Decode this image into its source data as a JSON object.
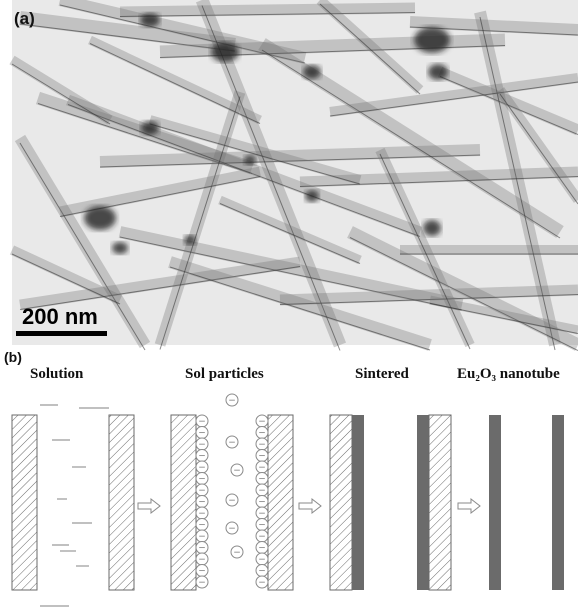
{
  "panel_a": {
    "label": "(a)",
    "scale_bar": "200 nm",
    "colors": {
      "background": "#e9e9e9",
      "ribbon": "#6f6f6f",
      "ribbon_dark": "#2e2e2e",
      "particle": "#1f1f1f"
    }
  },
  "panel_b": {
    "label": "(b)",
    "steps": [
      {
        "label": "Solution"
      },
      {
        "label": "Sol particles"
      },
      {
        "label": "Sintered"
      },
      {
        "label": "Eu₂O₃ nanotube"
      }
    ],
    "arrow_icon": "hollow-right-arrow-icon",
    "particle_symbol": "−",
    "colors": {
      "hatch": "#6a6a6a",
      "solid_wall": "#6b6b6b",
      "dash": "#9a9a9a",
      "particle_stroke": "#8a8a8a"
    }
  }
}
